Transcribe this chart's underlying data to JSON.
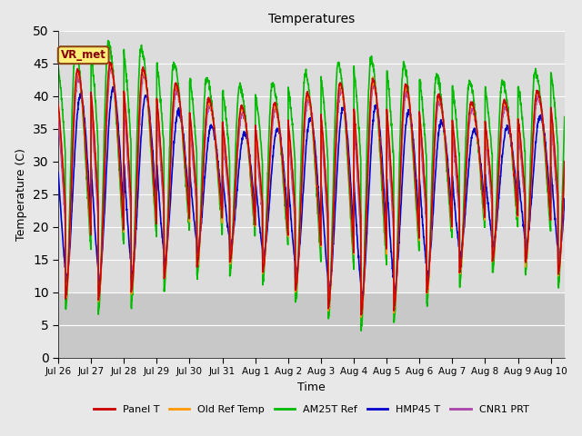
{
  "title": "Temperatures",
  "xlabel": "Time",
  "ylabel": "Temperature (C)",
  "ylim": [
    0,
    50
  ],
  "yticks": [
    0,
    5,
    10,
    15,
    20,
    25,
    30,
    35,
    40,
    45,
    50
  ],
  "fig_bg_color": "#e8e8e8",
  "plot_bg_color": "#dcdcdc",
  "plot_bg_lower": "#c8c8c8",
  "annotation_text": "VR_met",
  "annotation_box_color": "#ffee77",
  "annotation_text_color": "#880000",
  "series_colors": {
    "Panel T": "#cc0000",
    "Old Ref Temp": "#ff9900",
    "AM25T Ref": "#00bb00",
    "HMP45 T": "#0000cc",
    "CNR1 PRT": "#aa44aa"
  },
  "line_width": 1.2,
  "num_days": 15.42,
  "samples_per_day": 144,
  "tick_days": [
    0,
    1,
    2,
    3,
    4,
    5,
    6,
    7,
    8,
    9,
    10,
    11,
    12,
    13,
    14,
    15
  ],
  "tick_labels": [
    "Jul 26",
    "Jul 27",
    "Jul 28",
    "Jul 29",
    "Jul 30",
    "Jul 31",
    "Aug 1",
    "Aug 2",
    "Aug 3",
    "Aug 4",
    "Aug 5",
    "Aug 6",
    "Aug 7",
    "Aug 8",
    "Aug 9",
    "Aug 10"
  ]
}
